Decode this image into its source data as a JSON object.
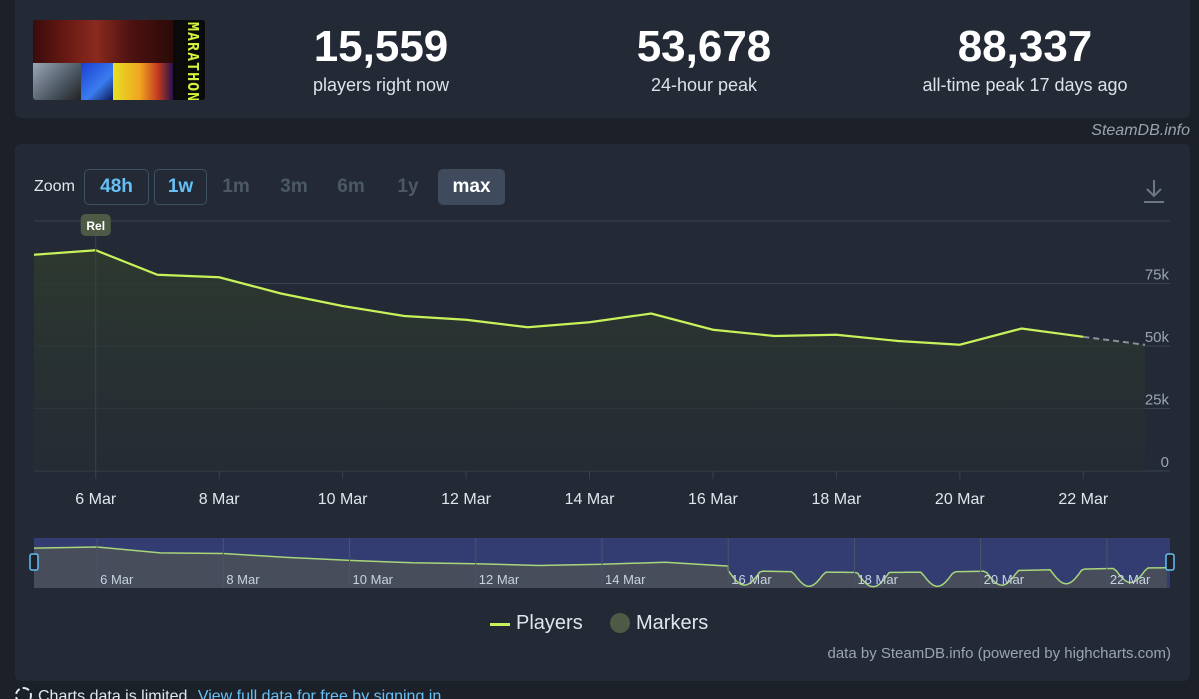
{
  "game": {
    "logo_text": "MARATHON",
    "logo_icon": "game-logo"
  },
  "stats": [
    {
      "value": "15,559",
      "label": "players right now"
    },
    {
      "value": "53,678",
      "label": "24-hour peak"
    },
    {
      "value": "88,337",
      "label": "all-time peak 17 days ago"
    }
  ],
  "credit": "SteamDB.info",
  "zoom": {
    "label": "Zoom",
    "buttons": [
      {
        "label": "48h",
        "state": "active"
      },
      {
        "label": "1w",
        "state": "active"
      },
      {
        "label": "1m",
        "state": "disabled"
      },
      {
        "label": "3m",
        "state": "disabled"
      },
      {
        "label": "6m",
        "state": "disabled"
      },
      {
        "label": "1y",
        "state": "disabled"
      },
      {
        "label": "max",
        "state": "selected"
      }
    ],
    "download_icon": "download-icon"
  },
  "chart_data": {
    "type": "area",
    "title": "",
    "xlabel": "",
    "ylabel": "",
    "x_ticks": [
      "6 Mar",
      "8 Mar",
      "10 Mar",
      "12 Mar",
      "14 Mar",
      "16 Mar",
      "18 Mar",
      "20 Mar",
      "22 Mar"
    ],
    "y_ticks": [
      "0",
      "25k",
      "50k",
      "75k"
    ],
    "ylim": [
      0,
      100000
    ],
    "xlim": [
      5,
      23
    ],
    "grid": true,
    "series": [
      {
        "name": "Players",
        "x": [
          5,
          6,
          7,
          8,
          9,
          10,
          11,
          12,
          13,
          14,
          15,
          16,
          17,
          18,
          19,
          20,
          21,
          22
        ],
        "values": [
          86500,
          88300,
          78500,
          77500,
          71000,
          66000,
          62000,
          60500,
          57500,
          59500,
          63000,
          56500,
          54000,
          54500,
          52000,
          50500,
          57000,
          53678
        ]
      },
      {
        "name": "Players (incomplete)",
        "x": [
          22,
          23
        ],
        "values": [
          53678,
          50500
        ]
      }
    ],
    "markers": [
      {
        "x": 6,
        "label": "Rel"
      }
    ],
    "navigator": {
      "x_ticks": [
        "6 Mar",
        "8 Mar",
        "10 Mar",
        "12 Mar",
        "14 Mar",
        "16 Mar",
        "18 Mar",
        "20 Mar",
        "22 Mar"
      ],
      "selected_from": 16
    },
    "legend": {
      "placement": "bottom-center",
      "items": [
        "Players",
        "Markers"
      ]
    },
    "colors": {
      "line": "#c8f25a",
      "marker": "#4e5a45",
      "grid": "#3a4250",
      "navigator_selected": "#35407a"
    }
  },
  "attribution": "data by SteamDB.info (powered by highcharts.com)",
  "bottom_note": {
    "text": "Charts data is limited.",
    "link": "View full data for free by signing in"
  }
}
